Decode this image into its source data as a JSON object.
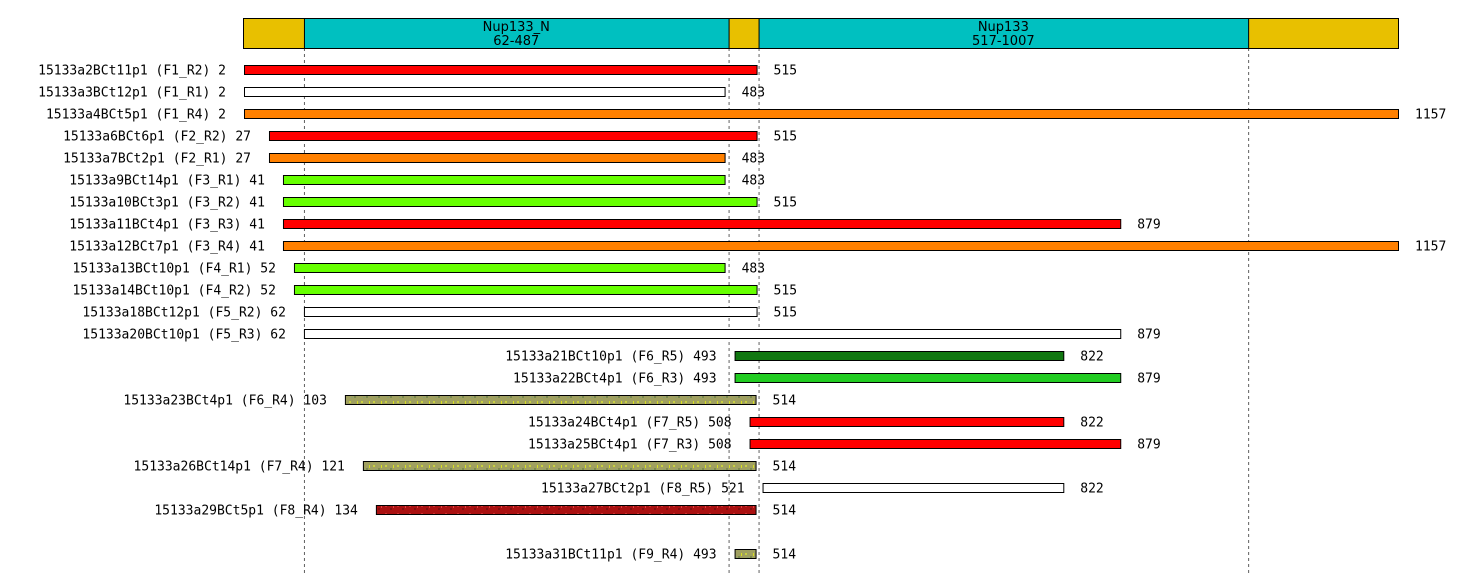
{
  "protein": {
    "length": 1157,
    "background_color": "#e8c000",
    "domain_color": "#00c0c0",
    "domains": [
      {
        "name": "Nup133_N",
        "range": "62-487",
        "start": 62,
        "end": 487
      },
      {
        "name": "Nup133",
        "range": "517-1007",
        "start": 517,
        "end": 1007
      }
    ]
  },
  "guides": [
    62,
    487,
    517,
    1007
  ],
  "colors": {
    "red": "#ff0000",
    "orange": "#ff8000",
    "light_green": "#66ff00",
    "green": "#22cc22",
    "dark_green": "#117711",
    "white": "#ffffff",
    "olive_speckle": "#a0a060",
    "red_speckle": "#aa1111"
  },
  "constructs": [
    {
      "name": "15133a2BCt11p1",
      "primers": "(F1_R2)",
      "start": 2,
      "end": 515,
      "color": "red"
    },
    {
      "name": "15133a3BCt12p1",
      "primers": "(F1_R1)",
      "start": 2,
      "end": 483,
      "color": "white"
    },
    {
      "name": "15133a4BCt5p1",
      "primers": "(F1_R4)",
      "start": 2,
      "end": 1157,
      "color": "orange"
    },
    {
      "name": "15133a6BCt6p1",
      "primers": "(F2_R2)",
      "start": 27,
      "end": 515,
      "color": "red"
    },
    {
      "name": "15133a7BCt2p1",
      "primers": "(F2_R1)",
      "start": 27,
      "end": 483,
      "color": "orange"
    },
    {
      "name": "15133a9BCt14p1",
      "primers": "(F3_R1)",
      "start": 41,
      "end": 483,
      "color": "light_green"
    },
    {
      "name": "15133a10BCt3p1",
      "primers": "(F3_R2)",
      "start": 41,
      "end": 515,
      "color": "light_green"
    },
    {
      "name": "15133a11BCt4p1",
      "primers": "(F3_R3)",
      "start": 41,
      "end": 879,
      "color": "red"
    },
    {
      "name": "15133a12BCt7p1",
      "primers": "(F3_R4)",
      "start": 41,
      "end": 1157,
      "color": "orange"
    },
    {
      "name": "15133a13BCt10p1",
      "primers": "(F4_R1)",
      "start": 52,
      "end": 483,
      "color": "light_green"
    },
    {
      "name": "15133a14BCt10p1",
      "primers": "(F4_R2)",
      "start": 52,
      "end": 515,
      "color": "light_green"
    },
    {
      "name": "15133a18BCt12p1",
      "primers": "(F5_R2)",
      "start": 62,
      "end": 515,
      "color": "white"
    },
    {
      "name": "15133a20BCt10p1",
      "primers": "(F5_R3)",
      "start": 62,
      "end": 879,
      "color": "white"
    },
    {
      "name": "15133a21BCt10p1",
      "primers": "(F6_R5)",
      "start": 493,
      "end": 822,
      "color": "dark_green"
    },
    {
      "name": "15133a22BCt4p1",
      "primers": "(F6_R3)",
      "start": 493,
      "end": 879,
      "color": "green"
    },
    {
      "name": "15133a23BCt4p1",
      "primers": "(F6_R4)",
      "start": 103,
      "end": 514,
      "color": "olive_speckle"
    },
    {
      "name": "15133a24BCt4p1",
      "primers": "(F7_R5)",
      "start": 508,
      "end": 822,
      "color": "red"
    },
    {
      "name": "15133a25BCt4p1",
      "primers": "(F7_R3)",
      "start": 508,
      "end": 879,
      "color": "red"
    },
    {
      "name": "15133a26BCt14p1",
      "primers": "(F7_R4)",
      "start": 121,
      "end": 514,
      "color": "olive_speckle"
    },
    {
      "name": "15133a27BCt2p1",
      "primers": "(F8_R5)",
      "start": 521,
      "end": 822,
      "color": "white"
    },
    {
      "name": "15133a29BCt5p1",
      "primers": "(F8_R4)",
      "start": 134,
      "end": 514,
      "color": "red_speckle"
    },
    {
      "name": "15133a31BCt11p1",
      "primers": "(F9_R4)",
      "start": 493,
      "end": 514,
      "color": "olive_speckle",
      "gap_before": true
    }
  ]
}
